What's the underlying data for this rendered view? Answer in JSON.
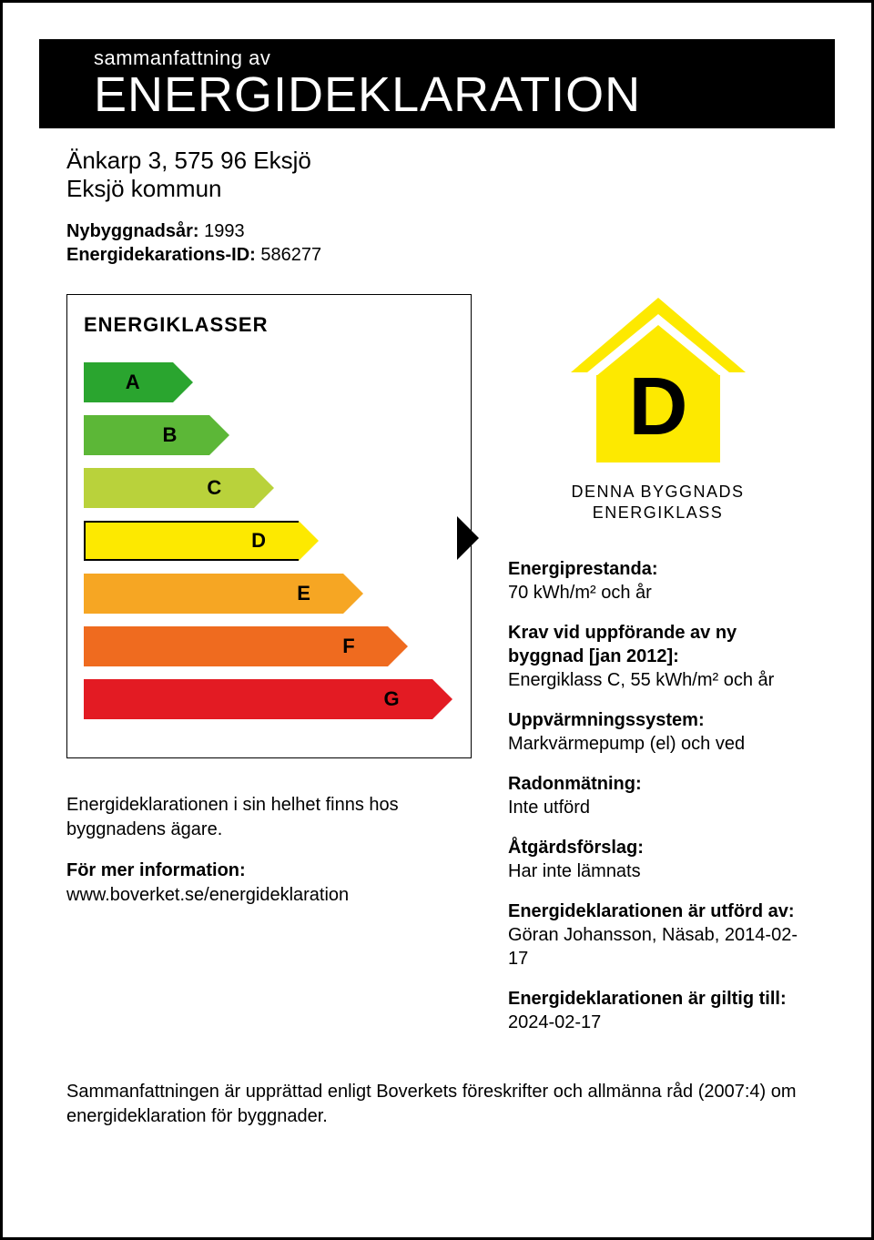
{
  "header": {
    "small": "sammanfattning av",
    "big": "ENERGIDEKLARATION"
  },
  "address": {
    "line1": "Änkarp 3, 575 96 Eksjö",
    "line2": "Eksjö kommun"
  },
  "meta": {
    "year_label": "Nybyggnadsår:",
    "year_value": "1993",
    "id_label": "Energidekarations-ID:",
    "id_value": "586277"
  },
  "chart": {
    "title": "ENERGIKLASSER",
    "type": "horizontal-arrow-scale",
    "background_color": "#ffffff",
    "border_color": "#000000",
    "highlighted_index": 3,
    "bars": [
      {
        "label": "A",
        "width_pct": 24,
        "fill": "#2aa52f",
        "text_color": "#000000"
      },
      {
        "label": "B",
        "width_pct": 34,
        "fill": "#5cb737",
        "text_color": "#000000"
      },
      {
        "label": "C",
        "width_pct": 46,
        "fill": "#b9d23b",
        "text_color": "#000000"
      },
      {
        "label": "D",
        "width_pct": 58,
        "fill": "#fde900",
        "text_color": "#000000"
      },
      {
        "label": "E",
        "width_pct": 70,
        "fill": "#f6a623",
        "text_color": "#000000"
      },
      {
        "label": "F",
        "width_pct": 82,
        "fill": "#ef6b1f",
        "text_color": "#000000"
      },
      {
        "label": "G",
        "width_pct": 94,
        "fill": "#e31b23",
        "text_color": "#000000"
      }
    ]
  },
  "below_chart": {
    "p1": "Energideklarationen i sin helhet finns hos byggnadens ägare.",
    "p2_label": "För mer information:",
    "p2_value": "www.boverket.se/energideklaration"
  },
  "house": {
    "letter": "D",
    "caption_line1": "DENNA BYGGNADS",
    "caption_line2": "ENERGIKLASS",
    "roof_color": "#fde900",
    "wall_color": "#fde900",
    "outline_color": "#000000",
    "text_color": "#000000"
  },
  "info": [
    {
      "label": "Energiprestanda:",
      "value": "70 kWh/m² och år"
    },
    {
      "label": "Krav vid uppförande av ny byggnad [jan 2012]:",
      "value": "Energiklass C, 55 kWh/m² och år"
    },
    {
      "label": "Uppvärmningssystem:",
      "value": "Markvärmepump (el) och ved"
    },
    {
      "label": "Radonmätning:",
      "value": "Inte utförd"
    },
    {
      "label": "Åtgärdsförslag:",
      "value": "Har inte lämnats"
    },
    {
      "label": "Energideklarationen är utförd av:",
      "value": "Göran Johansson, Näsab, 2014-02-17"
    },
    {
      "label": "Energideklarationen är giltig till:",
      "value": "2024-02-17"
    }
  ],
  "footer": "Sammanfattningen är upprättad enligt Boverkets föreskrifter och allmänna råd (2007:4) om energideklaration för byggnader."
}
